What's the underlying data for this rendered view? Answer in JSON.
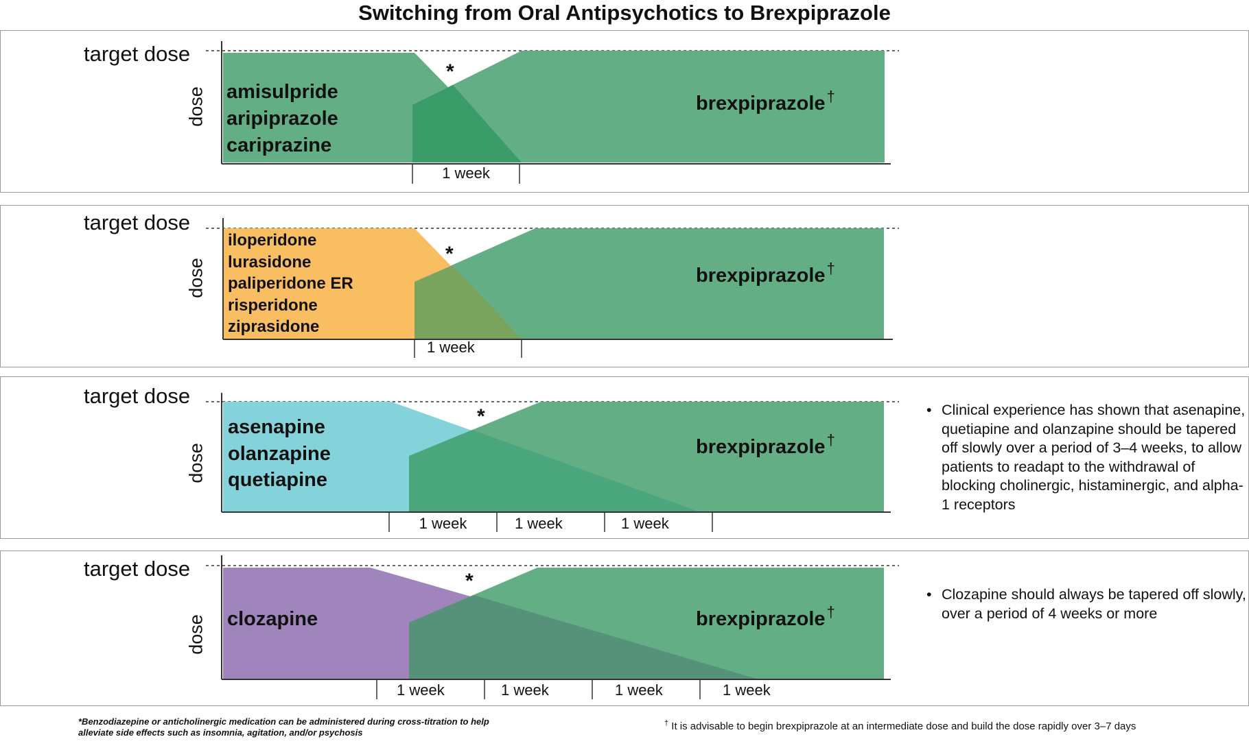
{
  "title": "Switching from Oral Antipsychotics to Brexpiprazole",
  "target_dose_label": "target dose",
  "dose_axis_label": "dose",
  "week_label": "1 week",
  "asterisk": "*",
  "dagger": "†",
  "brexpiprazole_label": "brexpiprazole",
  "colors": {
    "brexpiprazole_green": "#63ae84",
    "overlap_green": "#3a9c68",
    "group2_orange": "#f9bd62",
    "group2_overlap": "#7aa45e",
    "group3_cyan": "#84d2da",
    "group3_overlap": "#4aa77d",
    "group4_purple": "#a084bc",
    "group4_overlap": "#56917a"
  },
  "panels": [
    {
      "drugs": [
        "amisulpride",
        "aripiprazole",
        "cariprazine"
      ],
      "weeks": 1,
      "note": ""
    },
    {
      "drugs": [
        "iloperidone",
        "lurasidone",
        "paliperidone ER",
        "risperidone",
        "ziprasidone"
      ],
      "weeks": 1,
      "note": ""
    },
    {
      "drugs": [
        "asenapine",
        "olanzapine",
        "quetiapine"
      ],
      "weeks": 3,
      "note": "Clinical experience has shown that asenapine, quetiapine and olanzapine should be tapered off slowly over a period of 3–4 weeks, to allow patients to readapt to the withdrawal of blocking cholinergic, histaminergic, and alpha-1 receptors"
    },
    {
      "drugs": [
        "clozapine"
      ],
      "weeks": 4,
      "note": "Clozapine should always be tapered off slowly, over a period of 4 weeks or more"
    }
  ],
  "footnotes": {
    "asterisk_note": "*Benzodiazepine or anticholinergic medication can be administered during cross-titration to help alleviate side effects such as insomnia, agitation, and/or psychosis",
    "dagger_note": "It is advisable to begin brexpiprazole at an intermediate dose and build the dose rapidly over 3–7 days"
  }
}
